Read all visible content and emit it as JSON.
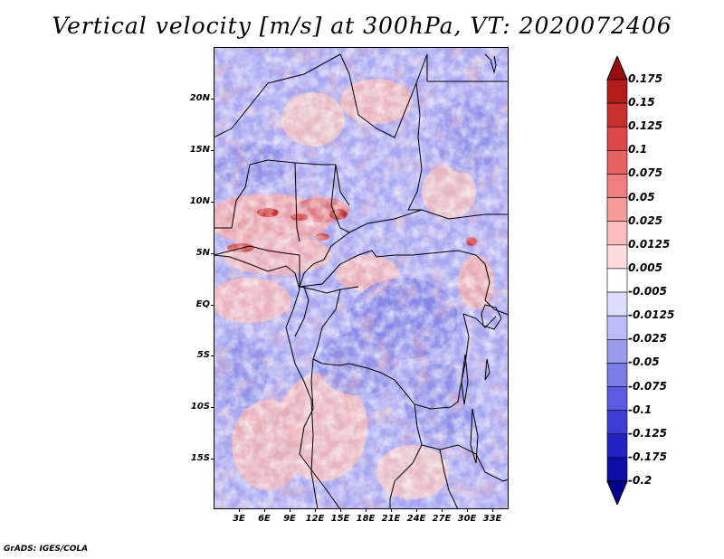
{
  "title": "Vertical velocity [m/s] at 300hPa, VT: 2020072406",
  "footer": "GrADS: IGES/COLA",
  "map": {
    "lat_labels": [
      "20N",
      "15N",
      "10N",
      "5N",
      "EQ",
      "5S",
      "10S",
      "15S"
    ],
    "lon_labels": [
      "3E",
      "6E",
      "9E",
      "12E",
      "15E",
      "18E",
      "21E",
      "24E",
      "27E",
      "30E",
      "33E"
    ],
    "lat_range": [
      -20,
      25
    ],
    "lon_range": [
      0,
      35
    ]
  },
  "colorbar": {
    "labels": [
      "0.175",
      "0.15",
      "0.125",
      "0.1",
      "0.075",
      "0.05",
      "0.025",
      "0.0125",
      "0.005",
      "-0.005",
      "-0.0125",
      "-0.025",
      "-0.05",
      "-0.075",
      "-0.1",
      "-0.125",
      "-0.175",
      "-0.2"
    ],
    "colors": [
      "#9a0d0d",
      "#b31a1a",
      "#c93030",
      "#db4848",
      "#e86262",
      "#f07e7e",
      "#f69c9c",
      "#fbbcbc",
      "#fddede",
      "#ffffff",
      "#dcdcfb",
      "#bcbcf6",
      "#9c9cef",
      "#7c7ce8",
      "#5c5ce0",
      "#3e3ed4",
      "#2222c2",
      "#0d0da8",
      "#00008f"
    ]
  }
}
